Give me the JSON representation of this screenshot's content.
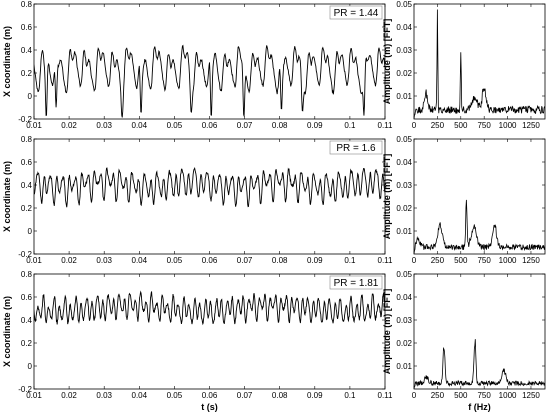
{
  "chart_data": [
    {
      "id": "time-1",
      "type": "line",
      "xlabel": "",
      "ylabel": "X coordinate (m)",
      "xlim": [
        0.01,
        0.11
      ],
      "ylim": [
        -0.2,
        0.8
      ],
      "xticks": [
        0.01,
        0.02,
        0.03,
        0.04,
        0.05,
        0.06,
        0.07,
        0.08,
        0.09,
        0.1,
        0.11
      ],
      "xtick_labels": [
        "0.01",
        "0.02",
        "0.03",
        "0.04",
        "0.05",
        "0.06",
        "0.07",
        "0.08",
        "0.09",
        "0.1",
        "0.11"
      ],
      "yticks": [
        -0.2,
        0,
        0.2,
        0.4,
        0.6,
        0.8
      ],
      "ytick_labels": [
        "-0.2",
        "0",
        "0.2",
        "0.4",
        "0.6",
        "0.8"
      ],
      "annotation": "PR = 1.44",
      "grid": false,
      "signal": {
        "mean": 0.25,
        "components": [
          {
            "freq": 250,
            "amp": 0.13,
            "phase": 0.0
          },
          {
            "freq": 500,
            "amp": 0.07,
            "phase": 1.1
          },
          {
            "freq": 130,
            "amp": 0.035,
            "phase": 2.3
          },
          {
            "freq": 750,
            "amp": 0.03,
            "phase": 0.5
          }
        ]
      },
      "samples": 700,
      "dips": [
        {
          "x": 0.0135,
          "y": -0.19
        },
        {
          "x": 0.0163,
          "y": -0.1
        },
        {
          "x": 0.0351,
          "y": -0.19
        },
        {
          "x": 0.0405,
          "y": -0.16
        },
        {
          "x": 0.0548,
          "y": -0.15
        },
        {
          "x": 0.0605,
          "y": -0.19
        },
        {
          "x": 0.0698,
          "y": -0.19
        },
        {
          "x": 0.0805,
          "y": -0.13
        },
        {
          "x": 0.0865,
          "y": -0.14
        },
        {
          "x": 0.104,
          "y": -0.17
        }
      ]
    },
    {
      "id": "fft-1",
      "type": "line",
      "xlabel": "",
      "ylabel": "Amplitude (m) [FFT]",
      "xlim": [
        0,
        1400
      ],
      "ylim": [
        0,
        0.05
      ],
      "xticks": [
        0,
        250,
        500,
        750,
        1000,
        1250
      ],
      "xtick_labels": [
        "0",
        "250",
        "500",
        "750",
        "1000",
        "1250"
      ],
      "yticks": [
        0.01,
        0.02,
        0.03,
        0.04,
        0.05
      ],
      "ytick_labels": [
        "0.01",
        "0.02",
        "0.03",
        "0.04",
        "0.05"
      ],
      "grid": false,
      "peaks": [
        {
          "f": 250,
          "a": 0.048,
          "w": 6
        },
        {
          "f": 500,
          "a": 0.031,
          "w": 6
        },
        {
          "f": 130,
          "a": 0.008,
          "w": 25
        },
        {
          "f": 750,
          "a": 0.01,
          "w": 30
        },
        {
          "f": 650,
          "a": 0.006,
          "w": 40
        }
      ],
      "floor": 0.004,
      "samples": 280
    },
    {
      "id": "time-2",
      "type": "line",
      "xlabel": "",
      "ylabel": "X coordinate (m)",
      "xlim": [
        0.01,
        0.11
      ],
      "ylim": [
        -0.2,
        0.8
      ],
      "xticks": [
        0.01,
        0.02,
        0.03,
        0.04,
        0.05,
        0.06,
        0.07,
        0.08,
        0.09,
        0.1,
        0.11
      ],
      "xtick_labels": [
        "0.01",
        "0.02",
        "0.03",
        "0.04",
        "0.05",
        "0.06",
        "0.07",
        "0.08",
        "0.09",
        "0.1",
        "0.11"
      ],
      "yticks": [
        -0.2,
        0,
        0.2,
        0.4,
        0.6,
        0.8
      ],
      "ytick_labels": [
        "-0.2",
        "0",
        "0.2",
        "0.4",
        "0.6",
        "0.8"
      ],
      "annotation": "PR = 1.6",
      "grid": false,
      "signal": {
        "mean": 0.4,
        "components": [
          {
            "freq": 560,
            "amp": 0.09,
            "phase": 0.0
          },
          {
            "freq": 290,
            "amp": 0.05,
            "phase": 0.8
          },
          {
            "freq": 850,
            "amp": 0.03,
            "phase": 1.9
          },
          {
            "freq": 40,
            "amp": 0.025,
            "phase": 0.3
          }
        ]
      },
      "samples": 900,
      "dips": []
    },
    {
      "id": "fft-2",
      "type": "line",
      "xlabel": "",
      "ylabel": "Amplitude (m) [FFT]",
      "xlim": [
        0,
        1400
      ],
      "ylim": [
        0,
        0.05
      ],
      "xticks": [
        0,
        250,
        500,
        750,
        1000,
        1250
      ],
      "xtick_labels": [
        "0",
        "250",
        "500",
        "750",
        "1000",
        "1250"
      ],
      "yticks": [
        0.01,
        0.02,
        0.03,
        0.04,
        0.05
      ],
      "ytick_labels": [
        "0.01",
        "0.02",
        "0.03",
        "0.04",
        "0.05"
      ],
      "grid": false,
      "peaks": [
        {
          "f": 560,
          "a": 0.021,
          "w": 10
        },
        {
          "f": 280,
          "a": 0.011,
          "w": 35
        },
        {
          "f": 860,
          "a": 0.011,
          "w": 30
        },
        {
          "f": 640,
          "a": 0.01,
          "w": 40
        },
        {
          "f": 40,
          "a": 0.004,
          "w": 30
        }
      ],
      "floor": 0.003,
      "samples": 280
    },
    {
      "id": "time-3",
      "type": "line",
      "xlabel": "t (s)",
      "ylabel": "X coordinate (m)",
      "xlim": [
        0.01,
        0.11
      ],
      "ylim": [
        -0.2,
        0.8
      ],
      "xticks": [
        0.01,
        0.02,
        0.03,
        0.04,
        0.05,
        0.06,
        0.07,
        0.08,
        0.09,
        0.1,
        0.11
      ],
      "xtick_labels": [
        "0.01",
        "0.02",
        "0.03",
        "0.04",
        "0.05",
        "0.06",
        "0.07",
        "0.08",
        "0.09",
        "0.1",
        "0.11"
      ],
      "yticks": [
        -0.2,
        0,
        0.2,
        0.4,
        0.6,
        0.8
      ],
      "ytick_labels": [
        "-0.2",
        "0",
        "0.2",
        "0.4",
        "0.6",
        "0.8"
      ],
      "annotation": "PR = 1.81",
      "grid": false,
      "signal": {
        "mean": 0.5,
        "components": [
          {
            "freq": 650,
            "amp": 0.08,
            "phase": 0.0
          },
          {
            "freq": 320,
            "amp": 0.04,
            "phase": 1.4
          },
          {
            "freq": 950,
            "amp": 0.02,
            "phase": 0.6
          },
          {
            "freq": 25,
            "amp": 0.025,
            "phase": 2.0
          }
        ]
      },
      "samples": 1000,
      "dips": []
    },
    {
      "id": "fft-3",
      "type": "line",
      "xlabel": "f (Hz)",
      "ylabel": "Amplitude (m) [FFT]",
      "xlim": [
        0,
        1400
      ],
      "ylim": [
        0,
        0.05
      ],
      "xticks": [
        0,
        250,
        500,
        750,
        1000,
        1250
      ],
      "xtick_labels": [
        "0",
        "250",
        "500",
        "750",
        "1000",
        "1250"
      ],
      "yticks": [
        0.01,
        0.02,
        0.03,
        0.04,
        0.05
      ],
      "ytick_labels": [
        "0.01",
        "0.02",
        "0.03",
        "0.04",
        "0.05"
      ],
      "grid": false,
      "peaks": [
        {
          "f": 320,
          "a": 0.021,
          "w": 14
        },
        {
          "f": 650,
          "a": 0.022,
          "w": 14
        },
        {
          "f": 960,
          "a": 0.006,
          "w": 30
        },
        {
          "f": 130,
          "a": 0.003,
          "w": 30
        }
      ],
      "floor": 0.0025,
      "samples": 280
    }
  ]
}
